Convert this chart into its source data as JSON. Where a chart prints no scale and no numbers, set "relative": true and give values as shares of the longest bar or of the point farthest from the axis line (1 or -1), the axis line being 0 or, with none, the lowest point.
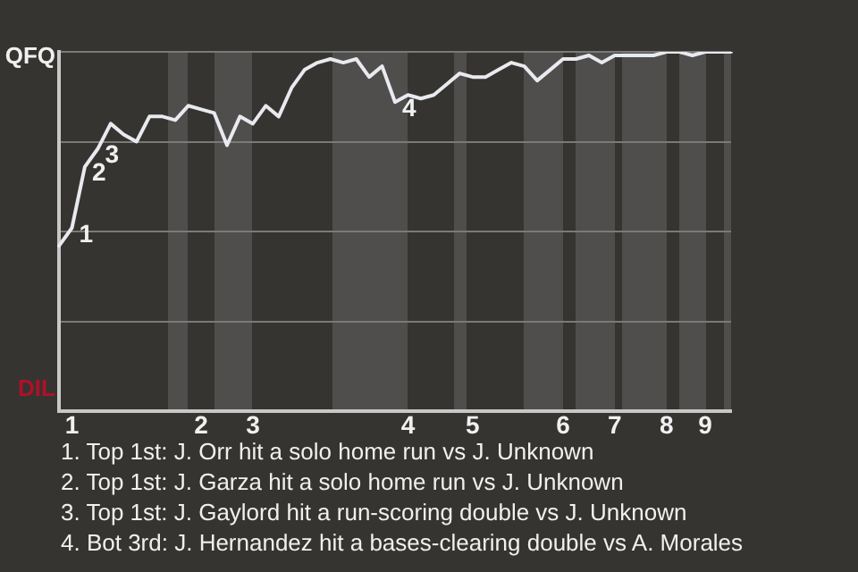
{
  "chart_data": {
    "type": "line",
    "relative": true,
    "categories": [
      null,
      "1",
      null,
      null,
      null,
      null,
      null,
      null,
      null,
      null,
      null,
      "2",
      null,
      null,
      null,
      "3",
      null,
      null,
      null,
      null,
      null,
      null,
      null,
      null,
      null,
      null,
      null,
      "4",
      null,
      null,
      null,
      null,
      "5",
      null,
      null,
      null,
      null,
      null,
      null,
      "6",
      null,
      null,
      null,
      "7",
      null,
      null,
      null,
      "8",
      null,
      null,
      "9",
      null,
      null
    ],
    "values": [
      0.46,
      0.51,
      0.68,
      0.73,
      0.8,
      0.77,
      0.75,
      0.82,
      0.82,
      0.81,
      0.85,
      0.84,
      0.83,
      0.74,
      0.82,
      0.8,
      0.85,
      0.82,
      0.9,
      0.95,
      0.97,
      0.98,
      0.97,
      0.98,
      0.93,
      0.96,
      0.86,
      0.88,
      0.87,
      0.88,
      0.91,
      0.94,
      0.93,
      0.93,
      0.95,
      0.97,
      0.96,
      0.92,
      0.95,
      0.98,
      0.98,
      0.99,
      0.97,
      0.99,
      0.99,
      0.99,
      0.99,
      1.0,
      1.0,
      0.99,
      1.0,
      1.0,
      1.0
    ],
    "color": "#e8eaf0",
    "grid": "y",
    "legend": false,
    "marker": "none",
    "annotations": [
      "QFQ",
      "DIL",
      "1",
      "2",
      "3",
      "4",
      "1. Top 1st: J. Orr hit a solo home run vs J. Unknown",
      "2. Top 1st: J. Garza hit a solo home run vs J. Unknown",
      "3. Top 1st: J. Gaylord hit a run-scoring double vs J. Unknown",
      "4. Bot 3rd: J. Hernandez hit a bases-clearing double vs A. Morales"
    ]
  }
}
